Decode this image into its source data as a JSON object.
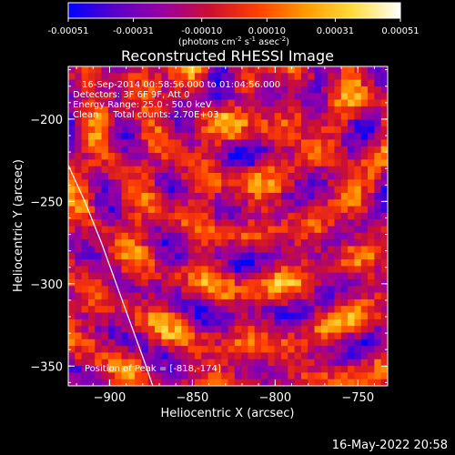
{
  "chart_data": {
    "type": "heatmap",
    "title": "Reconstructed RHESSI Image",
    "xlabel": "Heliocentric X (arcsec)",
    "ylabel": "Heliocentric Y (arcsec)",
    "xlim": [
      -925,
      -732
    ],
    "ylim": [
      -362,
      -168
    ],
    "x_ticks": [
      -900,
      -850,
      -800,
      -750
    ],
    "y_ticks": [
      -200,
      -250,
      -300,
      -350
    ],
    "colorbar": {
      "ticks": [
        "-0.00051",
        "-0.00031",
        "-0.00010",
        "0.00010",
        "0.00031",
        "0.00051"
      ],
      "range": [
        -0.00051,
        0.00051
      ],
      "unit_prefix": "(photons cm",
      "unit_exp1": "-2",
      "unit_mid": " s",
      "unit_exp2": "-1",
      "unit_mid2": " asec",
      "unit_exp3": "-2",
      "unit_suffix": ")",
      "colormap": [
        "#0000ff",
        "#5a00c8",
        "#9a00a0",
        "#cc1030",
        "#ff4000",
        "#ff9a00",
        "#ffdc40",
        "#ffffff"
      ]
    },
    "annotations": {
      "line1": "16-Sep-2014 00:58:56.000 to 01:04:56.000",
      "line2": "Detectors: 3F 6F 9F, Att 0",
      "line3": "Energy Range: 25.0 - 50.0 keV",
      "line4": "Clean     Total counts: 2.70E+03",
      "peak": "Position of Peak = [-818,-174]"
    },
    "peak": [
      -818,
      -174
    ],
    "limb_curve": [
      [
        -925,
        -228
      ],
      [
        -915,
        -250
      ],
      [
        -905,
        -275
      ],
      [
        -896,
        -300
      ],
      [
        -887,
        -325
      ],
      [
        -878,
        -350
      ],
      [
        -874,
        -362
      ]
    ],
    "grid_size": [
      48,
      48
    ]
  },
  "timestamp": "16-May-2022 20:58"
}
